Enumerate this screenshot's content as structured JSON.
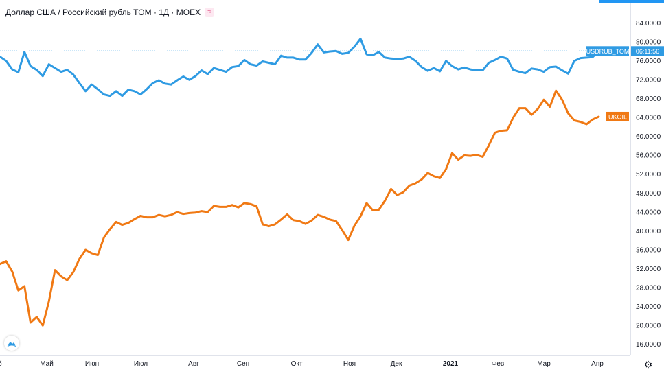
{
  "header": {
    "symbol_title": "Доллар США / Российский рубль TOM · 1Д · MOEX",
    "indicator_icon": "≈"
  },
  "accent_color": "#2196f3",
  "chart_data": {
    "type": "line",
    "ylim": [
      12,
      88
    ],
    "y_ticks": [
      "84.0000",
      "80.0000",
      "76.0000",
      "72.0000",
      "68.0000",
      "64.0000",
      "60.0000",
      "56.0000",
      "52.0000",
      "48.0000",
      "44.0000",
      "40.0000",
      "36.0000",
      "32.0000",
      "28.0000",
      "24.0000",
      "20.0000",
      "16.0000"
    ],
    "x_ticks": [
      "Май",
      "Июн",
      "Июл",
      "Авг",
      "Сен",
      "Окт",
      "Ноя",
      "Дек",
      "2021",
      "Фев",
      "Мар",
      "Апр"
    ],
    "x_partial_label": "б",
    "grid": false,
    "series": [
      {
        "name": "USDRUB_TOM",
        "color": "#2f9be3",
        "last_label": "USDRUB_TOM",
        "countdown": "06:11:56",
        "current_value": 78.0,
        "values": [
          76.8,
          75.9,
          74.1,
          73.5,
          77.8,
          74.8,
          74.0,
          72.7,
          75.2,
          74.4,
          73.6,
          74.0,
          73.0,
          71.2,
          69.5,
          70.9,
          69.9,
          68.8,
          68.5,
          69.5,
          68.5,
          69.8,
          69.5,
          68.8,
          69.9,
          71.2,
          71.8,
          71.1,
          70.9,
          71.8,
          72.6,
          71.9,
          72.7,
          73.9,
          73.1,
          74.4,
          74.0,
          73.6,
          74.6,
          74.8,
          76.1,
          75.2,
          74.9,
          75.8,
          75.5,
          75.2,
          77.0,
          76.6,
          76.6,
          76.2,
          76.2,
          77.6,
          79.4,
          77.7,
          77.9,
          78.0,
          77.4,
          77.6,
          78.9,
          80.6,
          77.3,
          77.1,
          77.8,
          76.6,
          76.4,
          76.3,
          76.4,
          76.8,
          75.9,
          74.6,
          73.8,
          74.4,
          73.7,
          75.9,
          74.8,
          74.1,
          74.5,
          74.1,
          73.9,
          73.9,
          75.5,
          76.1,
          76.8,
          76.4,
          74.0,
          73.6,
          73.3,
          74.3,
          74.1,
          73.6,
          74.6,
          74.7,
          73.9,
          73.2,
          75.9,
          76.5,
          76.6,
          76.7,
          78.0
        ]
      },
      {
        "name": "UKOIL",
        "color": "#f07914",
        "last_label": "UKOIL",
        "current_value": 64.1,
        "values": [
          32.9,
          33.5,
          31.3,
          27.3,
          28.2,
          20.5,
          21.7,
          19.9,
          25.0,
          31.6,
          30.3,
          29.5,
          31.2,
          34.0,
          35.9,
          35.2,
          34.8,
          38.5,
          40.3,
          41.8,
          41.2,
          41.6,
          42.4,
          43.1,
          42.8,
          42.8,
          43.3,
          43.0,
          43.3,
          43.9,
          43.5,
          43.7,
          43.8,
          44.1,
          43.9,
          45.2,
          45.0,
          45.0,
          45.4,
          44.9,
          45.8,
          45.6,
          45.1,
          41.3,
          40.9,
          41.3,
          42.3,
          43.4,
          42.2,
          42.0,
          41.4,
          42.1,
          43.3,
          42.9,
          42.3,
          42.0,
          40.1,
          38.0,
          41.0,
          43.0,
          45.8,
          44.3,
          44.4,
          46.3,
          48.8,
          47.5,
          48.1,
          49.5,
          50.0,
          50.8,
          52.2,
          51.5,
          51.1,
          53.0,
          56.4,
          55.0,
          55.9,
          55.8,
          56.0,
          55.6,
          58.0,
          60.7,
          61.1,
          61.2,
          63.9,
          65.9,
          65.9,
          64.5,
          65.7,
          67.7,
          66.2,
          69.6,
          67.7,
          64.8,
          63.3,
          63.0,
          62.5,
          63.5,
          64.1
        ]
      }
    ]
  }
}
